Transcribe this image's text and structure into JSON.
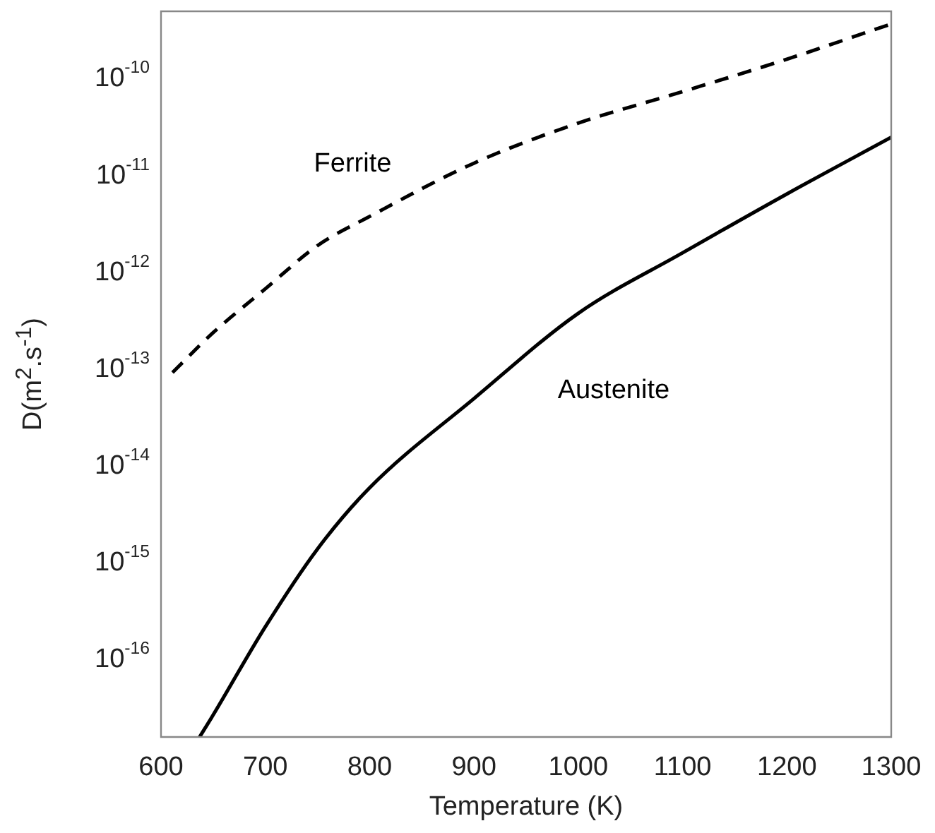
{
  "chart_data": {
    "type": "line",
    "xlabel": "Temperature (K)",
    "ylabel": "D(m$^{2}$.s$^{-1}$)",
    "log": "y",
    "grid": false,
    "legend": false,
    "marker": "none",
    "xlim": [
      600,
      1300
    ],
    "xticks": [
      600,
      700,
      800,
      900,
      1000,
      1100,
      1200,
      1300
    ],
    "ylim": [
      1.6e-17,
      5e-10
    ],
    "yticks": [
      {
        "value": 1e-16,
        "label": "10$^{-16}$"
      },
      {
        "value": 1e-15,
        "label": "10$^{-15}$"
      },
      {
        "value": 1e-14,
        "label": "10$^{-14}$"
      },
      {
        "value": 1e-13,
        "label": "10$^{-13}$"
      },
      {
        "value": 1e-12,
        "label": "10$^{-12}$"
      },
      {
        "value": 1e-11,
        "label": "10$^{-11}$"
      },
      {
        "value": 1e-10,
        "label": "10$^{-10}$"
      }
    ],
    "series": [
      {
        "name": "Ferrite",
        "color": "#000000",
        "line_style": "dashed",
        "x": [
          611,
          650,
          700,
          750,
          800,
          900,
          1000,
          1100,
          1200,
          1300
        ],
        "values": [
          9.3e-14,
          2.4e-13,
          6.8e-13,
          1.9e-12,
          3.8e-12,
          1.35e-11,
          3.5e-11,
          7.4e-11,
          1.6e-10,
          3.7e-10
        ]
      },
      {
        "name": "Austenite",
        "color": "#000000",
        "line_style": "solid",
        "x": [
          637,
          650,
          700,
          750,
          800,
          900,
          1000,
          1100,
          1200,
          1300
        ],
        "values": [
          1.6e-17,
          2.7e-17,
          2.2e-16,
          1.4e-15,
          6e-15,
          5e-14,
          3.8e-13,
          1.6e-12,
          6.5e-12,
          2.5e-11
        ]
      }
    ]
  }
}
